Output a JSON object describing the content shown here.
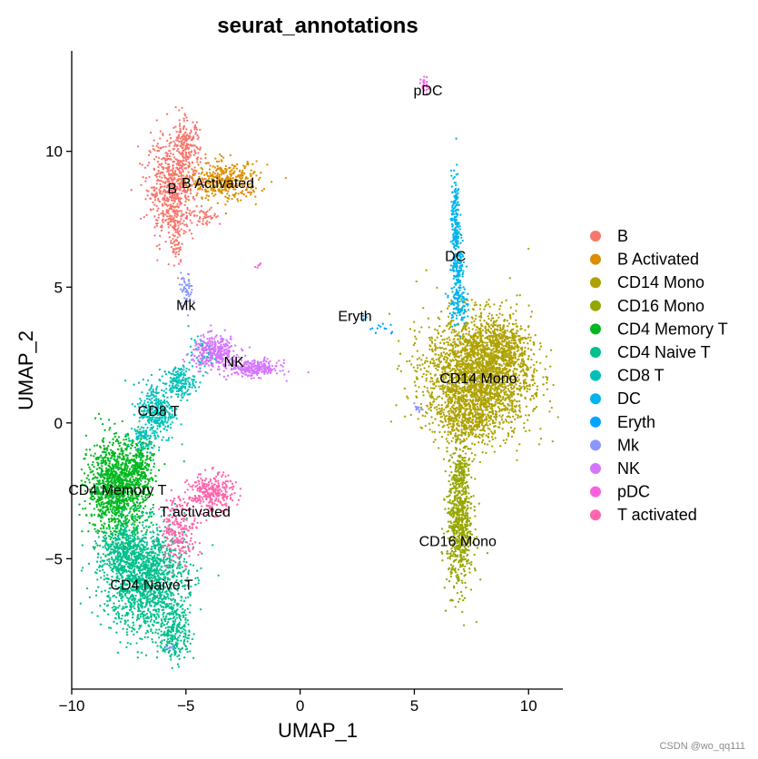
{
  "chart_data": {
    "type": "scatter",
    "title": "seurat_annotations",
    "xlabel": "UMAP_1",
    "ylabel": "UMAP_2",
    "xlim": [
      -10,
      11.5
    ],
    "ylim": [
      -9.8,
      13.7
    ],
    "x_ticks": [
      -10,
      -5,
      0,
      5,
      10
    ],
    "y_ticks": [
      -5,
      0,
      5,
      10
    ],
    "grid": false,
    "legend_position": "right",
    "series": [
      {
        "name": "B",
        "color": "#F8766D",
        "label": "B",
        "label_pos": [
          -5.6,
          8.6
        ],
        "blobs": [
          {
            "cx": -5.6,
            "cy": 8.7,
            "sx": 0.55,
            "sy": 0.9,
            "n": 620
          },
          {
            "cx": -5.0,
            "cy": 10.2,
            "sx": 0.3,
            "sy": 0.5,
            "n": 160
          },
          {
            "cx": -5.4,
            "cy": 6.9,
            "sx": 0.15,
            "sy": 0.6,
            "n": 80
          },
          {
            "cx": -4.2,
            "cy": 7.6,
            "sx": 0.35,
            "sy": 0.15,
            "n": 40
          }
        ]
      },
      {
        "name": "B Activated",
        "color": "#DB8E00",
        "label": "B Activated",
        "label_pos": [
          -3.6,
          8.8
        ],
        "blobs": [
          {
            "cx": -3.3,
            "cy": 8.9,
            "sx": 0.75,
            "sy": 0.35,
            "n": 380
          }
        ]
      },
      {
        "name": "CD14 Mono",
        "color": "#AEA200",
        "label": "CD14 Mono",
        "label_pos": [
          7.8,
          1.6
        ],
        "blobs": [
          {
            "cx": 7.8,
            "cy": 1.7,
            "sx": 1.15,
            "sy": 1.1,
            "n": 2600
          },
          {
            "cx": 8.8,
            "cy": 2.9,
            "sx": 0.6,
            "sy": 0.45,
            "n": 300
          },
          {
            "cx": 7.2,
            "cy": 0.1,
            "sx": 0.5,
            "sy": 0.4,
            "n": 200
          }
        ]
      },
      {
        "name": "CD16 Mono",
        "color": "#96A600",
        "label": "CD16 Mono",
        "label_pos": [
          6.9,
          -4.4
        ],
        "blobs": [
          {
            "cx": 7.0,
            "cy": -3.7,
            "sx": 0.28,
            "sy": 1.2,
            "n": 700
          },
          {
            "cx": 7.0,
            "cy": -1.8,
            "sx": 0.15,
            "sy": 0.4,
            "n": 80
          }
        ]
      },
      {
        "name": "CD4 Memory T",
        "color": "#00B81F",
        "label": "CD4 Memory T",
        "label_pos": [
          -8.0,
          -2.5
        ],
        "blobs": [
          {
            "cx": -8.0,
            "cy": -2.4,
            "sx": 0.65,
            "sy": 0.9,
            "n": 1200
          },
          {
            "cx": -7.0,
            "cy": -1.7,
            "sx": 0.3,
            "sy": 0.55,
            "n": 200
          }
        ]
      },
      {
        "name": "CD4 Naive T",
        "color": "#00C08D",
        "label": "CD4 Naive T",
        "label_pos": [
          -6.5,
          -6.0
        ],
        "blobs": [
          {
            "cx": -6.8,
            "cy": -5.7,
            "sx": 0.9,
            "sy": 1.0,
            "n": 1500
          },
          {
            "cx": -5.5,
            "cy": -7.7,
            "sx": 0.35,
            "sy": 0.55,
            "n": 260
          },
          {
            "cx": -7.9,
            "cy": -4.8,
            "sx": 0.4,
            "sy": 0.5,
            "n": 250
          }
        ]
      },
      {
        "name": "CD8 T",
        "color": "#00C0B8",
        "label": "CD8 T",
        "label_pos": [
          -6.2,
          0.4
        ],
        "blobs": [
          {
            "cx": -6.3,
            "cy": 0.4,
            "sx": 0.4,
            "sy": 0.55,
            "n": 320
          },
          {
            "cx": -5.3,
            "cy": 1.5,
            "sx": 0.35,
            "sy": 0.3,
            "n": 180
          },
          {
            "cx": -4.3,
            "cy": 2.5,
            "sx": 0.3,
            "sy": 0.3,
            "n": 60
          },
          {
            "cx": -7.0,
            "cy": -0.6,
            "sx": 0.25,
            "sy": 0.3,
            "n": 60
          }
        ]
      },
      {
        "name": "DC",
        "color": "#00B4EF",
        "label": "DC",
        "label_pos": [
          6.8,
          6.1
        ],
        "blobs": [
          {
            "cx": 6.8,
            "cy": 7.6,
            "sx": 0.09,
            "sy": 0.8,
            "n": 160
          },
          {
            "cx": 6.9,
            "cy": 5.9,
            "sx": 0.15,
            "sy": 0.55,
            "n": 150
          },
          {
            "cx": 6.9,
            "cy": 4.4,
            "sx": 0.18,
            "sy": 0.4,
            "n": 120
          }
        ]
      },
      {
        "name": "Eryth",
        "color": "#00A5FF",
        "label": "Eryth",
        "label_pos": [
          2.4,
          3.9
        ],
        "blobs": [
          {
            "cx": 3.7,
            "cy": 3.4,
            "sx": 0.35,
            "sy": 0.12,
            "n": 12
          },
          {
            "cx": 2.9,
            "cy": 3.9,
            "sx": 0.1,
            "sy": 0.1,
            "n": 5
          }
        ]
      },
      {
        "name": "Mk",
        "color": "#8A97FF",
        "label": "Mk",
        "label_pos": [
          -5.0,
          4.3
        ],
        "blobs": [
          {
            "cx": -5.0,
            "cy": 4.9,
            "sx": 0.15,
            "sy": 0.3,
            "n": 50
          },
          {
            "cx": 5.2,
            "cy": 0.5,
            "sx": 0.1,
            "sy": 0.1,
            "n": 12
          },
          {
            "cx": -5.7,
            "cy": -8.3,
            "sx": 0.1,
            "sy": 0.1,
            "n": 8
          }
        ]
      },
      {
        "name": "NK",
        "color": "#D575FE",
        "label": "NK",
        "label_pos": [
          -2.9,
          2.2
        ],
        "blobs": [
          {
            "cx": -3.7,
            "cy": 2.6,
            "sx": 0.5,
            "sy": 0.3,
            "n": 320
          },
          {
            "cx": -2.0,
            "cy": 2.0,
            "sx": 0.55,
            "sy": 0.15,
            "n": 260
          }
        ]
      },
      {
        "name": "pDC",
        "color": "#F962DD",
        "label": "pDC",
        "label_pos": [
          5.6,
          12.2
        ],
        "blobs": [
          {
            "cx": 5.5,
            "cy": 12.4,
            "sx": 0.1,
            "sy": 0.15,
            "n": 20
          },
          {
            "cx": -1.8,
            "cy": 5.8,
            "sx": 0.06,
            "sy": 0.06,
            "n": 6
          }
        ]
      },
      {
        "name": "T activated",
        "color": "#FF65AC",
        "label": "T activated",
        "label_pos": [
          -4.6,
          -3.3
        ],
        "blobs": [
          {
            "cx": -3.9,
            "cy": -2.6,
            "sx": 0.5,
            "sy": 0.35,
            "n": 300
          },
          {
            "cx": -5.3,
            "cy": -3.9,
            "sx": 0.4,
            "sy": 0.6,
            "n": 220
          }
        ]
      }
    ]
  },
  "watermark": "CSDN @wo_qq111"
}
